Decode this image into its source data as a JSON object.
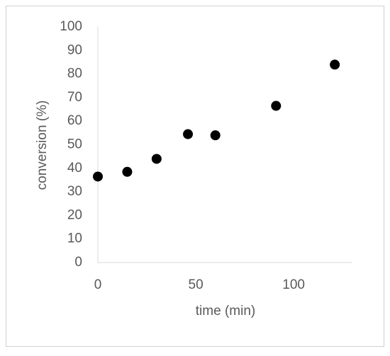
{
  "chart_data": {
    "type": "scatter",
    "x_label": "time (min)",
    "y_label": "conversion (%)",
    "x": [
      0,
      15,
      30,
      46,
      60,
      91,
      121
    ],
    "values": [
      36.5,
      38.5,
      44,
      54.5,
      54,
      66.5,
      84
    ],
    "color": "#000000",
    "xlim": [
      0,
      130
    ],
    "xticks": [
      0,
      50,
      100
    ],
    "ylim": [
      0,
      100
    ],
    "yticks": [
      0,
      10,
      20,
      30,
      40,
      50,
      60,
      70,
      80,
      90,
      100
    ],
    "grid": false
  }
}
